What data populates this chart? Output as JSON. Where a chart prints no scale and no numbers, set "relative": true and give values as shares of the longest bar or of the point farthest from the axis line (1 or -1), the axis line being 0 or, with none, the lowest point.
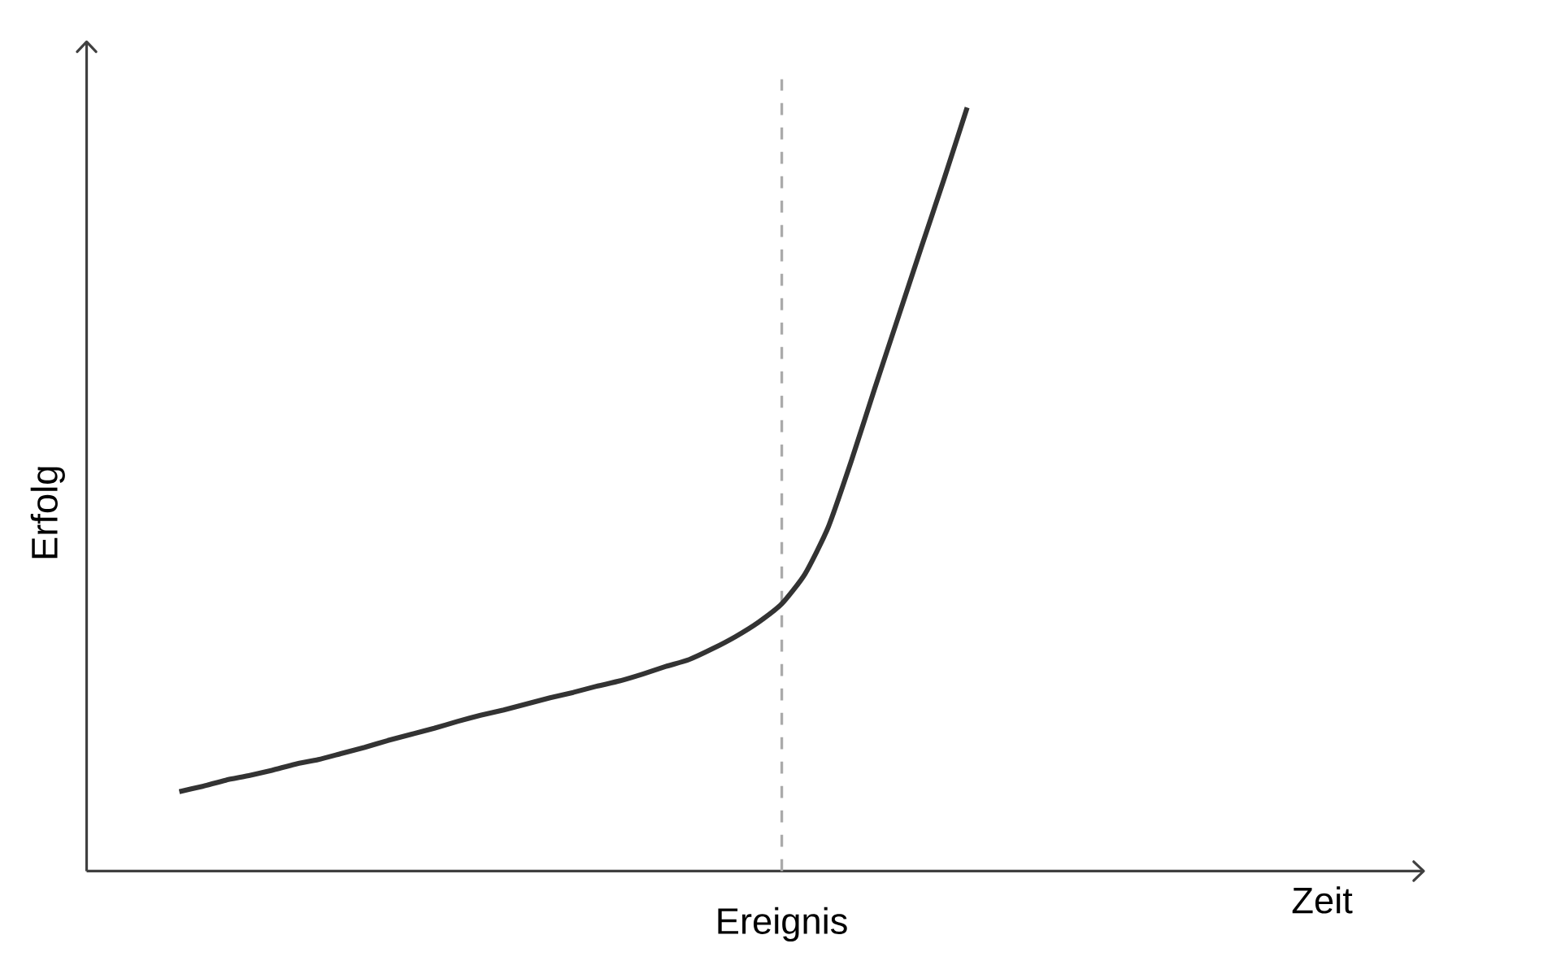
{
  "chart_data": {
    "type": "line",
    "xlabel": "Zeit",
    "ylabel": "Erfolg",
    "relative": true,
    "categories": [
      null,
      null,
      null,
      null,
      null,
      null,
      null,
      null,
      null,
      null,
      null,
      null,
      null,
      null,
      null,
      null,
      null,
      null,
      null,
      null,
      null,
      null,
      null,
      null,
      null,
      null,
      null,
      null,
      null,
      null,
      null,
      null,
      null,
      null,
      null,
      null,
      null,
      null,
      null,
      null,
      null,
      null,
      null,
      null,
      null,
      null,
      null,
      null,
      null,
      null,
      null,
      null,
      null,
      null,
      null,
      null,
      null,
      null
    ],
    "series": [
      {
        "color": "#333333",
        "values": [
          null,
          null,
          null,
          null,
          0.104,
          0.111,
          0.119,
          0.125,
          0.132,
          0.14,
          0.146,
          0.154,
          0.162,
          0.171,
          0.179,
          0.187,
          0.196,
          0.204,
          0.211,
          0.219,
          0.227,
          0.234,
          0.242,
          0.249,
          0.258,
          0.268,
          0.277,
          0.291,
          0.307,
          0.326,
          0.35,
          0.389,
          0.45,
          0.537,
          0.631,
          0.723,
          0.815,
          0.906,
          1,
          null,
          null,
          null,
          null,
          null,
          null,
          null,
          null,
          null,
          null,
          null,
          null,
          null,
          null,
          null,
          null,
          null,
          null,
          null
        ]
      }
    ],
    "annotations": [
      "Ereignis"
    ]
  }
}
